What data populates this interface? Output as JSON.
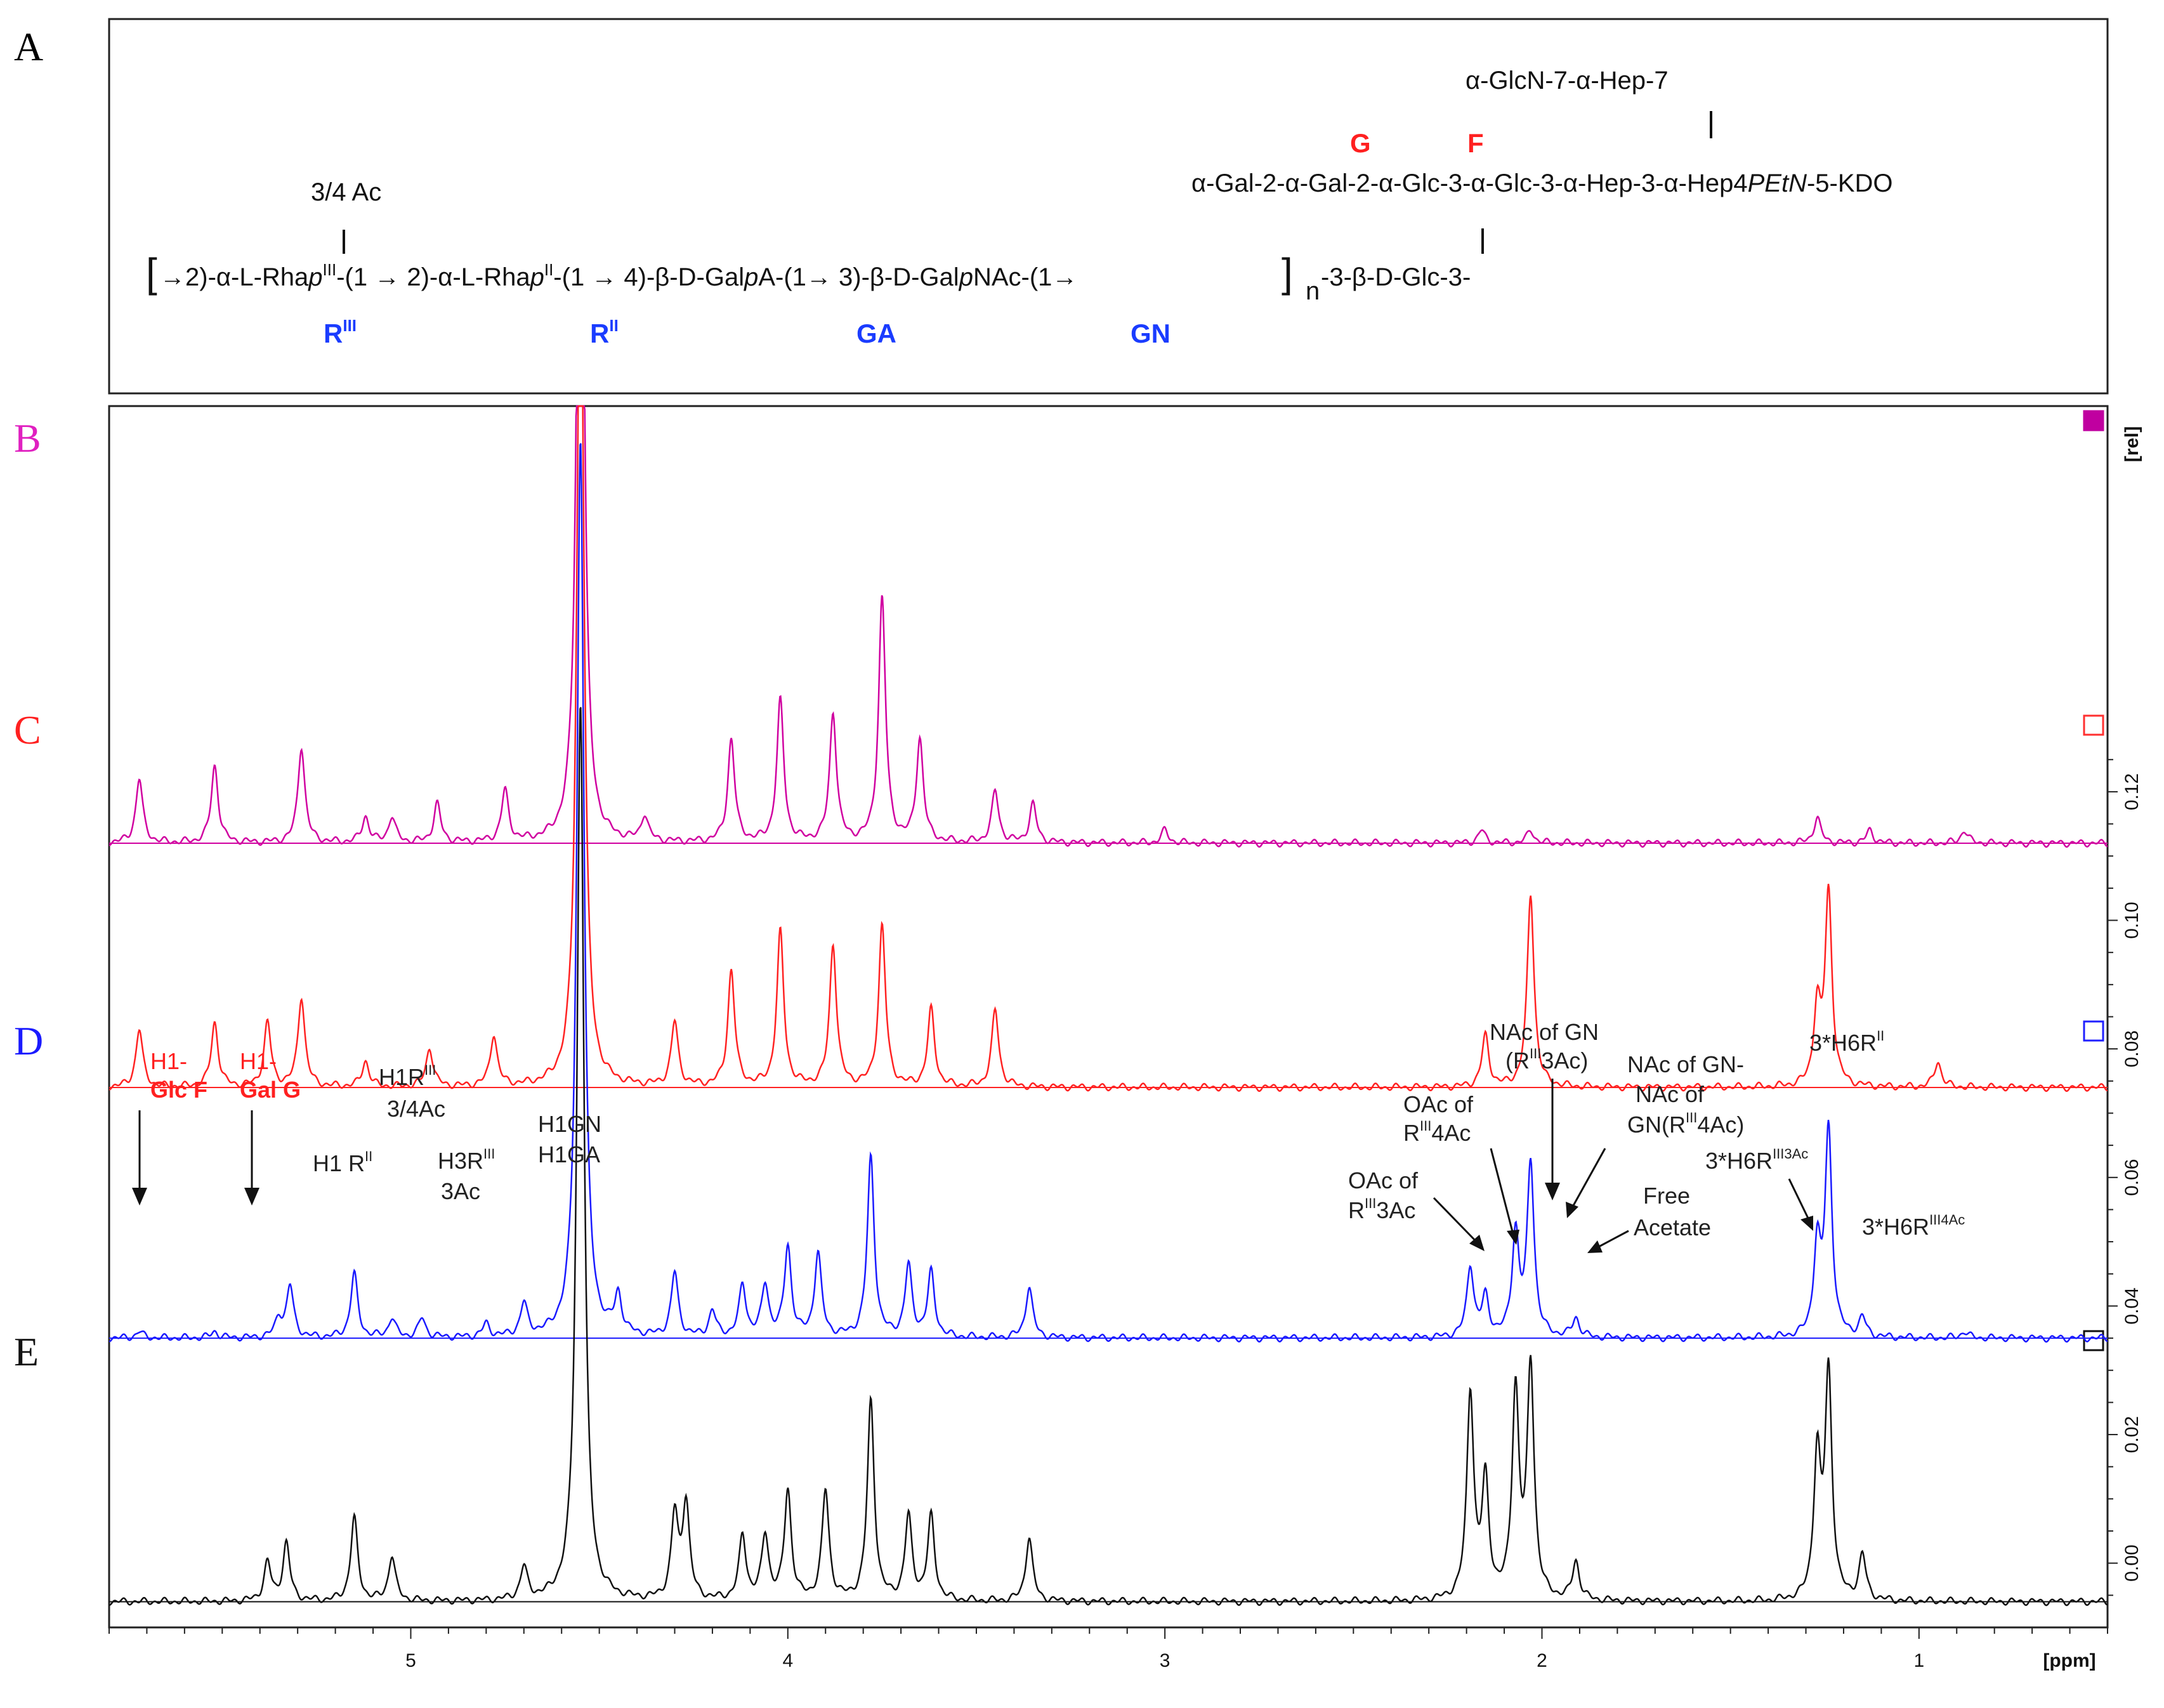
{
  "panels": {
    "A": "A",
    "B": "B",
    "C": "C",
    "D": "D",
    "E": "E",
    "colors": {
      "B": "#d000a0",
      "C": "#ff2222",
      "D": "#1a1aff",
      "E": "#111111"
    }
  },
  "structure": {
    "side_chain_top": "α-GlcN-7-α-Hep-7",
    "core_chain": "α-Gal-2-α-Gal-2-α-Glc-3-α-Glc-3-α-Hep-3-α-Hep4",
    "core_petn": "PEtN",
    "core_tail": "-5-KDO",
    "label_G": "G",
    "label_F": "F",
    "acetyl_label": "3/4 Ac",
    "repeat_open_bracket": "[",
    "repeat_unit_1": "→2)-α-L-Rha",
    "repeat_unit_1_p": "p",
    "repeat_unit_1_sup": "III",
    "repeat_unit_2": "-(1 → 2)-α-L-Rha",
    "repeat_unit_2_p": "p",
    "repeat_unit_2_sup": "II",
    "repeat_unit_3": "-(1 → 4)-β-D-Gal",
    "repeat_unit_3_p": "p",
    "repeat_unit_3_tail": "A-(1→ 3)-β-D-Gal",
    "repeat_unit_4_p": "p",
    "repeat_unit_4_tail": "NAc-(1→",
    "repeat_close_bracket": "]",
    "repeat_n": "n",
    "repeat_linker": "-3-β-D-Glc-3-",
    "residue_RIII": "R",
    "residue_RIII_sup": "III",
    "residue_RII": "R",
    "residue_RII_sup": "II",
    "residue_GA": "GA",
    "residue_GN": "GN"
  },
  "annotations": {
    "h1_glc_f_1": "H1-",
    "h1_glc_f_2": "Glc F",
    "h1_gal_g_1": "H1-",
    "h1_gal_g_2": "Gal G",
    "h1_rii": "H1 R",
    "h1_rii_sup": "II",
    "h1_riii_1": "H1R",
    "h1_riii_1_sup": "III",
    "h1_riii_2": "3/4Ac",
    "h3_riii_1": "H3R",
    "h3_riii_1_sup": "III",
    "h3_riii_2": "3Ac",
    "h1gn": "H1GN",
    "h1ga": "H1GA",
    "oac3_1": "OAc of",
    "oac3_2a": "R",
    "oac3_2sup": "III",
    "oac3_2b": "3Ac",
    "oac4_1": "OAc of",
    "oac4_2a": "R",
    "oac4_2sup": "III",
    "oac4_2b": "4Ac",
    "nac_gn_1": "NAc of GN",
    "nac_gn_2a": "(R",
    "nac_gn_2sup": "III",
    "nac_gn_2b": "3Ac)",
    "nac_gn4_1": "NAc of GN-",
    "nac_gn4_2": "NAc of",
    "nac_gn4_3a": "GN(R",
    "nac_gn4_3sup": "III",
    "nac_gn4_3b": "4Ac)",
    "free_1": "Free",
    "free_2": "Acetate",
    "h6_rii": "3*H6R",
    "h6_rii_sup": "II",
    "h6_3ac": "3*H6R",
    "h6_3ac_sup": "III3Ac",
    "h6_4ac": "3*H6R",
    "h6_4ac_sup": "III4Ac"
  },
  "chart_data": {
    "type": "line",
    "xlabel": "[ppm]",
    "ylabel": "[rel]",
    "xlim": [
      5.8,
      0.5
    ],
    "ylim": [
      -0.01,
      0.18
    ],
    "x_ticks": [
      "5",
      "4",
      "3",
      "2",
      "1"
    ],
    "y_ticks": [
      "0.00",
      "0.02",
      "0.04",
      "0.06",
      "0.08",
      "0.10",
      "0.12"
    ],
    "baselines": {
      "B": 0.112,
      "C": 0.074,
      "D": 0.035,
      "E": -0.006
    },
    "series": [
      {
        "panel": "B",
        "peaks": [
          [
            5.72,
            0.01
          ],
          [
            5.52,
            0.012
          ],
          [
            5.29,
            0.015
          ],
          [
            5.12,
            0.004
          ],
          [
            5.05,
            0.004
          ],
          [
            4.93,
            0.006
          ],
          [
            4.75,
            0.008
          ],
          [
            4.55,
            0.14
          ],
          [
            4.38,
            0.004
          ],
          [
            4.15,
            0.016
          ],
          [
            4.02,
            0.022
          ],
          [
            3.88,
            0.02
          ],
          [
            3.75,
            0.038
          ],
          [
            3.65,
            0.016
          ],
          [
            3.45,
            0.008
          ],
          [
            3.35,
            0.006
          ],
          [
            3.0,
            0.002
          ],
          [
            2.16,
            0.002
          ],
          [
            2.03,
            0.002
          ],
          [
            1.27,
            0.004
          ],
          [
            1.13,
            0.002
          ],
          [
            0.88,
            0.002
          ]
        ]
      },
      {
        "panel": "C",
        "peaks": [
          [
            5.72,
            0.009
          ],
          [
            5.52,
            0.01
          ],
          [
            5.38,
            0.01
          ],
          [
            5.29,
            0.014
          ],
          [
            5.12,
            0.004
          ],
          [
            4.95,
            0.006
          ],
          [
            4.78,
            0.008
          ],
          [
            4.55,
            0.14
          ],
          [
            4.3,
            0.01
          ],
          [
            4.15,
            0.018
          ],
          [
            4.02,
            0.024
          ],
          [
            3.88,
            0.022
          ],
          [
            3.75,
            0.025
          ],
          [
            3.62,
            0.012
          ],
          [
            3.45,
            0.012
          ],
          [
            2.15,
            0.008
          ],
          [
            2.03,
            0.03
          ],
          [
            1.24,
            0.03
          ],
          [
            1.27,
            0.012
          ],
          [
            0.95,
            0.004
          ]
        ]
      },
      {
        "panel": "D",
        "peaks": [
          [
            5.72,
            0.001
          ],
          [
            5.52,
            0.001
          ],
          [
            5.35,
            0.003
          ],
          [
            5.32,
            0.008
          ],
          [
            5.15,
            0.01
          ],
          [
            5.05,
            0.003
          ],
          [
            4.97,
            0.003
          ],
          [
            4.8,
            0.002
          ],
          [
            4.7,
            0.005
          ],
          [
            4.55,
            0.14
          ],
          [
            4.45,
            0.006
          ],
          [
            4.3,
            0.01
          ],
          [
            4.2,
            0.004
          ],
          [
            4.12,
            0.008
          ],
          [
            4.06,
            0.008
          ],
          [
            4.0,
            0.014
          ],
          [
            3.92,
            0.013
          ],
          [
            3.78,
            0.028
          ],
          [
            3.68,
            0.011
          ],
          [
            3.62,
            0.01
          ],
          [
            3.36,
            0.008
          ],
          [
            2.19,
            0.011
          ],
          [
            2.15,
            0.006
          ],
          [
            2.07,
            0.016
          ],
          [
            2.03,
            0.027
          ],
          [
            1.91,
            0.003
          ],
          [
            1.27,
            0.014
          ],
          [
            1.24,
            0.032
          ],
          [
            1.15,
            0.003
          ],
          [
            0.88,
            0.001
          ]
        ]
      },
      {
        "panel": "E",
        "peaks": [
          [
            5.38,
            0.006
          ],
          [
            5.33,
            0.009
          ],
          [
            5.15,
            0.013
          ],
          [
            5.05,
            0.007
          ],
          [
            4.7,
            0.005
          ],
          [
            4.55,
            0.14
          ],
          [
            4.3,
            0.013
          ],
          [
            4.27,
            0.015
          ],
          [
            4.12,
            0.01
          ],
          [
            4.06,
            0.01
          ],
          [
            4.0,
            0.017
          ],
          [
            3.9,
            0.017
          ],
          [
            3.78,
            0.031
          ],
          [
            3.68,
            0.013
          ],
          [
            3.62,
            0.013
          ],
          [
            3.36,
            0.01
          ],
          [
            2.19,
            0.032
          ],
          [
            2.15,
            0.018
          ],
          [
            2.07,
            0.032
          ],
          [
            2.03,
            0.036
          ],
          [
            1.91,
            0.006
          ],
          [
            1.27,
            0.022
          ],
          [
            1.24,
            0.035
          ],
          [
            1.15,
            0.007
          ]
        ]
      }
    ]
  }
}
